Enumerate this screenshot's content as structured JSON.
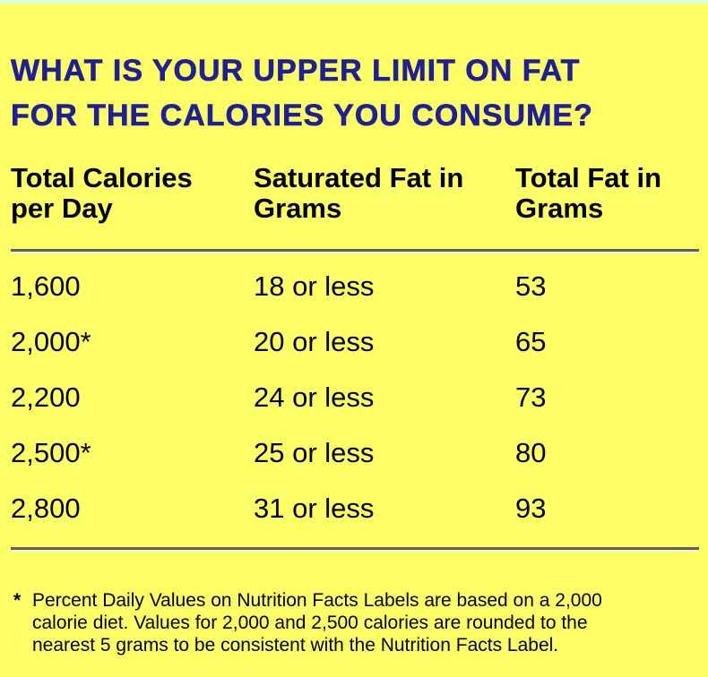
{
  "page": {
    "background_color": "#feff66",
    "top_strip_color": "#ddffdd",
    "title_color": "#1f1f96",
    "rule_dark_color": "#5f5f52",
    "rule_light_color": "#f2f2e4"
  },
  "title": {
    "lines": [
      "WHAT IS YOUR UPPER LIMIT ON FAT",
      "FOR THE CALORIES YOU CONSUME?"
    ]
  },
  "table": {
    "headers": [
      {
        "line1": "Total Calories",
        "line2": "per Day"
      },
      {
        "line1": "Saturated Fat in",
        "line2": "Grams"
      },
      {
        "line1": "Total Fat in",
        "line2": "Grams"
      }
    ],
    "rows": [
      [
        "1,600",
        "18 or less",
        "53"
      ],
      [
        "2,000*",
        "20 or less",
        "65"
      ],
      [
        "2,200",
        "24 or less",
        "73"
      ],
      [
        "2,500*",
        "25 or less",
        "80"
      ],
      [
        "2,800",
        "31 or less",
        "93"
      ]
    ]
  },
  "footnote": {
    "marker": "*",
    "lines": [
      "Percent Daily Values on Nutrition Facts Labels are based on a 2,000",
      "calorie diet. Values for 2,000 and 2,500 calories are rounded to the",
      "nearest 5 grams to be consistent with the Nutrition Facts Label."
    ]
  }
}
